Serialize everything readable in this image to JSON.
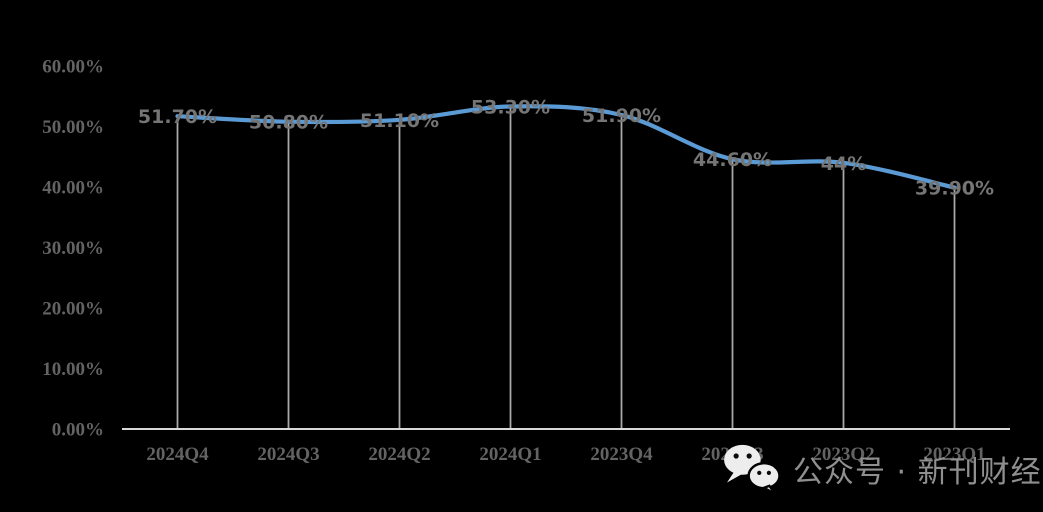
{
  "chart_data": {
    "type": "line",
    "categories": [
      "2024Q4",
      "2024Q3",
      "2024Q2",
      "2024Q1",
      "2023Q4",
      "2023Q3",
      "2023Q2",
      "2023Q1"
    ],
    "values": [
      51.7,
      50.8,
      51.1,
      53.3,
      51.9,
      44.6,
      44,
      39.9
    ],
    "data_labels": [
      "51.70%",
      "50.80%",
      "51.10%",
      "53.30%",
      "51.90%",
      "44.60%",
      "44%",
      "39.90%"
    ],
    "ylim": [
      0,
      60
    ],
    "yticks": [
      0,
      10,
      20,
      30,
      40,
      50,
      60
    ],
    "ytick_labels": [
      "0.00%",
      "10.00%",
      "20.00%",
      "30.00%",
      "40.00%",
      "50.00%",
      "60.00%"
    ],
    "grid": false,
    "legend": "none",
    "smooth": true,
    "drop_lines": true
  },
  "theme": {
    "background": "#000000",
    "line_color": "#5b9bd5",
    "axis_line_color": "#d9d9d9",
    "drop_line_color": "#a8a8a8",
    "axis_text_color": "#636363",
    "data_label_color": "#757575",
    "watermark_text_color": "#8f8f8f",
    "watermark_icon_color": "#ededed",
    "watermark_icon_eye_color": "#0a0a0a"
  },
  "watermark": {
    "icon": "wechat-logo",
    "text": "公众号 · 新刊财经"
  }
}
